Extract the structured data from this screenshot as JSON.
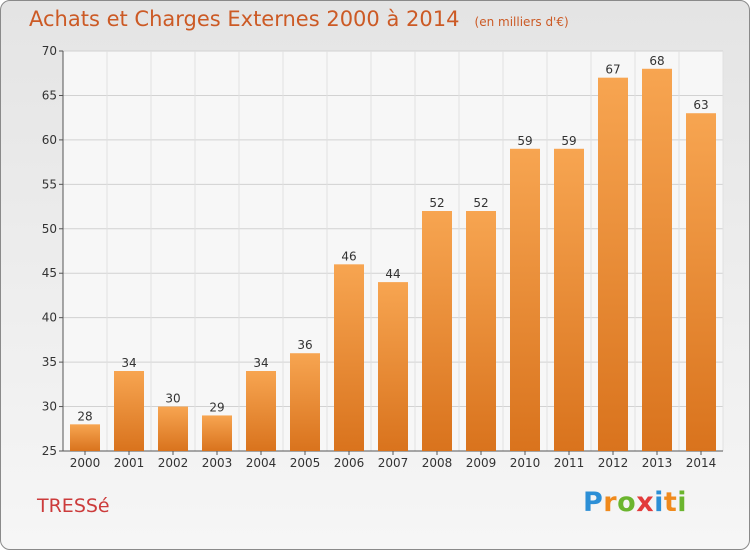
{
  "chart_data": {
    "type": "bar",
    "title": "Achats et Charges Externes 2000 à 2014",
    "unit_note": "(en milliers d'€)",
    "categories": [
      "2000",
      "2001",
      "2002",
      "2003",
      "2004",
      "2005",
      "2006",
      "2007",
      "2008",
      "2009",
      "2010",
      "2011",
      "2012",
      "2013",
      "2014"
    ],
    "values": [
      28,
      34,
      30,
      29,
      34,
      36,
      46,
      44,
      52,
      52,
      59,
      59,
      67,
      68,
      63
    ],
    "ylim": [
      25,
      70
    ],
    "yticks": [
      25,
      30,
      35,
      40,
      45,
      50,
      55,
      60,
      65,
      70
    ],
    "xlabel": "",
    "ylabel": "",
    "grid": true,
    "bar_color_top": "#f7a551",
    "bar_color_bottom": "#d9731d"
  },
  "commune": "TRESSé",
  "logo": {
    "letters": [
      "P",
      "r",
      "o",
      "x",
      "i",
      "t",
      "i"
    ],
    "colors": [
      "#2c8fd6",
      "#f08a1c",
      "#6bb52e",
      "#e23b3b",
      "#2c8fd6",
      "#f08a1c",
      "#6bb52e"
    ]
  }
}
